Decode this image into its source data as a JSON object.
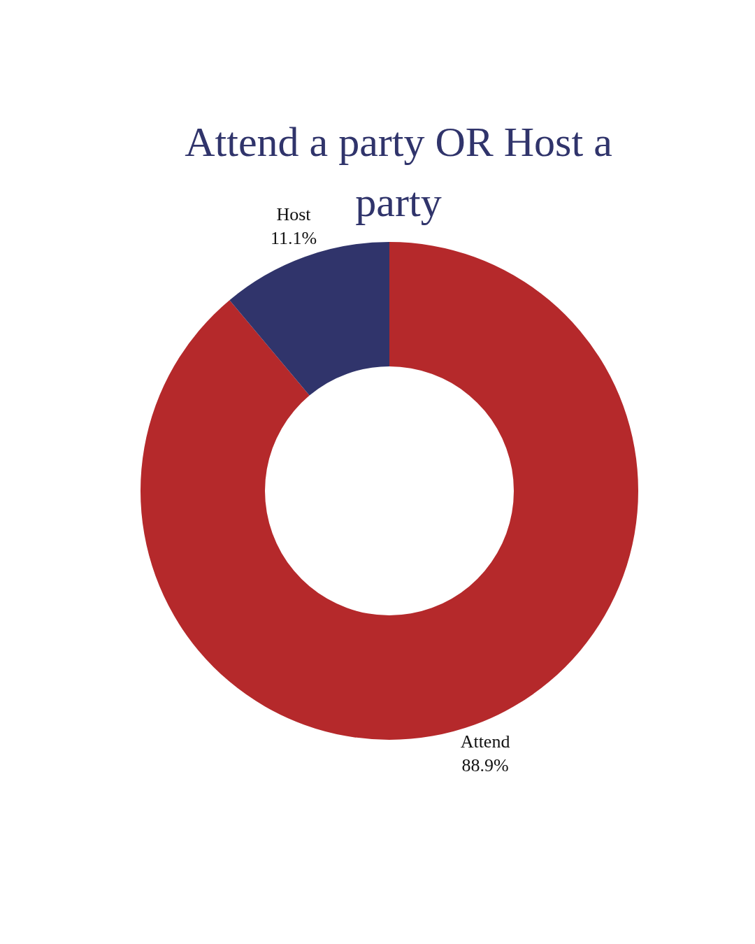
{
  "chart_data": {
    "type": "donut",
    "title": "Attend a party OR Host a party",
    "categories": [
      "Attend",
      "Host"
    ],
    "values": [
      88.9,
      11.1
    ],
    "colors": [
      "#b5292b",
      "#30346b"
    ],
    "value_labels": [
      "88.9%",
      "11.1%"
    ]
  }
}
